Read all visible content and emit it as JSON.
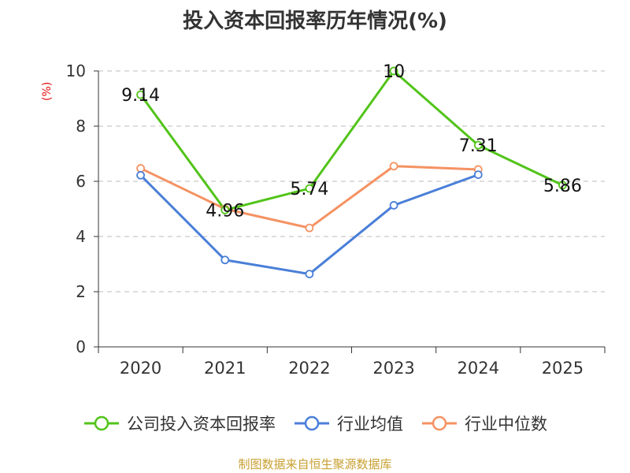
{
  "title": "投入资本回报率历年情况(%)",
  "source": "制图数据来自恒生聚源数据库",
  "chart_data": {
    "type": "line",
    "title": "投入资本回报率历年情况(%)",
    "ylabel": "(%)",
    "xlabel": "",
    "categories": [
      "2020",
      "2021",
      "2022",
      "2023",
      "2024",
      "2025"
    ],
    "ylim": [
      0,
      10
    ],
    "yticks": [
      0,
      2,
      4,
      6,
      8,
      10
    ],
    "grid": "horizontal-dashed",
    "legend_position": "bottom",
    "series": [
      {
        "name": "公司投入资本回报率",
        "color": "#52c41a",
        "values": [
          9.14,
          4.96,
          5.74,
          10,
          7.31,
          5.86
        ],
        "labels": [
          "9.14",
          "4.96",
          "5.74",
          "10",
          "7.31",
          "5.86"
        ]
      },
      {
        "name": "行业均值",
        "color": "#4a7fd8",
        "values": [
          6.22,
          3.15,
          2.64,
          5.13,
          6.24,
          null
        ]
      },
      {
        "name": "行业中位数",
        "color": "#f59262",
        "values": [
          6.47,
          5.0,
          4.31,
          6.55,
          6.43,
          null
        ]
      }
    ]
  }
}
